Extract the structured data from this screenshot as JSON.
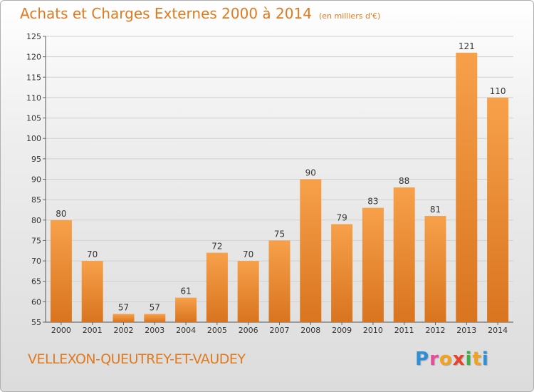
{
  "chart_data": {
    "type": "bar",
    "title": "Achats et Charges Externes 2000 à 2014",
    "subtitle": "(en milliers d'€)",
    "categories": [
      "2000",
      "2001",
      "2002",
      "2003",
      "2004",
      "2005",
      "2006",
      "2007",
      "2008",
      "2009",
      "2010",
      "2011",
      "2012",
      "2013",
      "2014"
    ],
    "values": [
      80,
      70,
      57,
      57,
      61,
      72,
      70,
      75,
      90,
      79,
      83,
      88,
      81,
      121,
      110
    ],
    "ylim": [
      55,
      125
    ],
    "yticks": [
      55,
      60,
      65,
      70,
      75,
      80,
      85,
      90,
      95,
      100,
      105,
      110,
      115,
      120,
      125
    ],
    "grid": true,
    "bar_color": "#f0963c",
    "xlabel": "",
    "ylabel": ""
  },
  "footer": {
    "city": "VELLEXON-QUEUTREY-ET-VAUDEY"
  },
  "brand": {
    "name": "Proxiti",
    "letters": [
      {
        "ch": "P",
        "color": "#2f8fd6"
      },
      {
        "ch": "r",
        "color": "#e94b9a"
      },
      {
        "ch": "o",
        "color": "#f3a21b"
      },
      {
        "ch": "x",
        "color": "#e8412c"
      },
      {
        "ch": "i",
        "color": "#3fae49"
      },
      {
        "ch": "t",
        "color": "#f3a21b"
      },
      {
        "ch": "i",
        "color": "#2f8fd6"
      }
    ]
  },
  "colors": {
    "accent": "#e07a1f",
    "grid": "#d0d0d0"
  }
}
